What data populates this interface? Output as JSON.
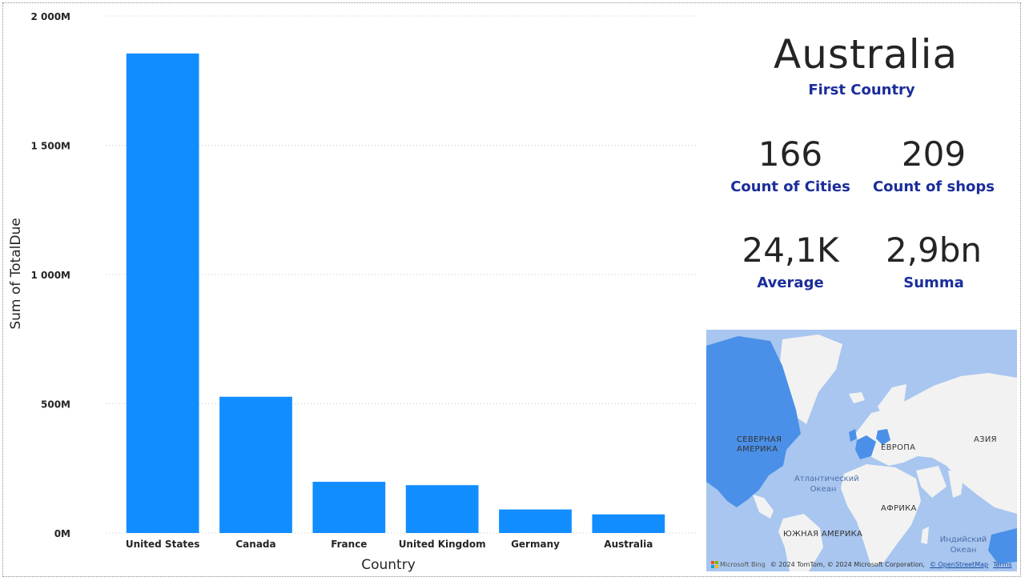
{
  "chart_data": {
    "type": "bar",
    "categories": [
      "United States",
      "Canada",
      "France",
      "United Kingdom",
      "Germany",
      "Australia"
    ],
    "values": [
      1855,
      527,
      198,
      185,
      91,
      72
    ],
    "value_unit": "M",
    "xlabel": "Country",
    "ylabel": "Sum of TotalDue",
    "ylim": [
      0,
      2000
    ],
    "yticks": [
      0,
      500,
      1000,
      1500,
      2000
    ],
    "ytick_labels": [
      "0M",
      "500M",
      "1 000M",
      "1 500M",
      "2 000M"
    ],
    "grid": true,
    "bar_color": "#118dff"
  },
  "cards": {
    "first_country": {
      "value": "Australia",
      "label": "First Country"
    },
    "cities": {
      "value": "166",
      "label": "Count of Cities"
    },
    "shops": {
      "value": "209",
      "label": "Count of shops"
    },
    "average": {
      "value": "24,1K",
      "label": "Average"
    },
    "summa": {
      "value": "2,9bn",
      "label": "Summa"
    }
  },
  "map": {
    "labels": {
      "north_america": "СЕВЕРНАЯ АМЕРИКА",
      "europe": "ЕВРОПА",
      "asia": "АЗИЯ",
      "africa": "АФРИКА",
      "south_america": "ЮЖНАЯ АМЕРИКА",
      "atlantic": "Атлантический Океан",
      "indian": "Индийский Океан"
    },
    "footer": {
      "bing": "Microsoft Bing",
      "copyright": "© 2024 TomTom, © 2024 Microsoft Corporation,",
      "osm": "© OpenStreetMap",
      "terms": "Terms"
    },
    "colors": {
      "water": "#a8c6ef",
      "land": "#f2f2f2",
      "highlight": "#4a90e8"
    }
  }
}
